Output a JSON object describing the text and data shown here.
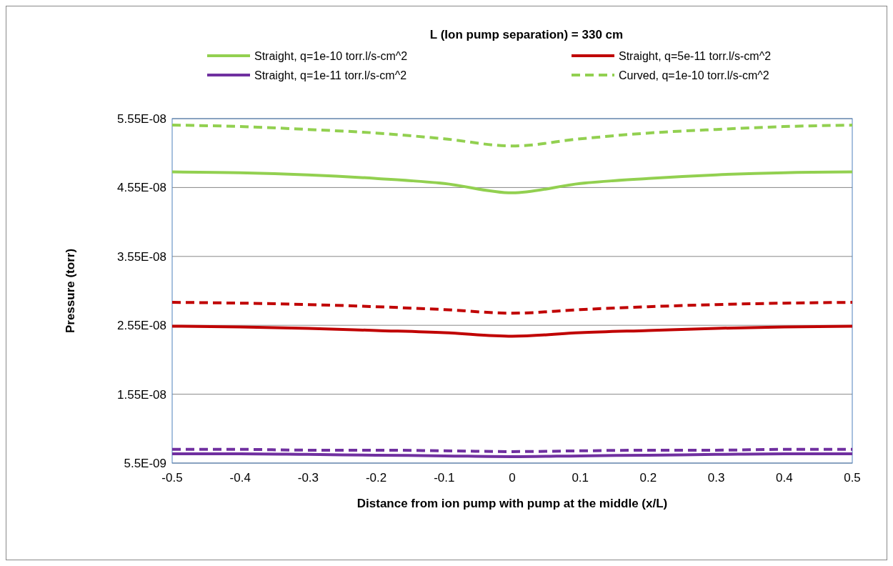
{
  "chart_data": {
    "type": "line",
    "title": "L (Ion pump separation) = 330 cm",
    "xlabel": "Distance from ion pump with pump at the middle (x/L)",
    "ylabel": "Pressure (torr)",
    "x": [
      -0.5,
      -0.4,
      -0.3,
      -0.2,
      -0.1,
      0,
      0.1,
      0.2,
      0.3,
      0.4,
      0.5
    ],
    "series": [
      {
        "name": "Straight, q=1e-10 torr.l/s-cm^2",
        "color": "#92d050",
        "line_style": "solid",
        "values": [
          4.776e-08,
          4.765e-08,
          4.734e-08,
          4.682e-08,
          4.609e-08,
          4.473e-08,
          4.609e-08,
          4.682e-08,
          4.734e-08,
          4.765e-08,
          4.776e-08
        ]
      },
      {
        "name": "Straight, q=5e-11 torr.l/s-cm^2",
        "color": "#c00000",
        "line_style": "solid",
        "values": [
          2.537e-08,
          2.527e-08,
          2.506e-08,
          2.475e-08,
          2.443e-08,
          2.391e-08,
          2.443e-08,
          2.475e-08,
          2.506e-08,
          2.527e-08,
          2.537e-08
        ]
      },
      {
        "name": "Straight, q=1e-11 torr.l/s-cm^2",
        "color": "#7030a0",
        "line_style": "solid",
        "values": [
          6.86e-09,
          6.86e-09,
          6.76e-09,
          6.65e-09,
          6.55e-09,
          6.44e-09,
          6.55e-09,
          6.65e-09,
          6.76e-09,
          6.86e-09,
          6.86e-09
        ]
      },
      {
        "name": "Curved, q=1e-10  torr.l/s-cm^2",
        "color": "#92d050",
        "line_style": "dashed",
        "values": [
          5.456e-08,
          5.435e-08,
          5.393e-08,
          5.341e-08,
          5.257e-08,
          5.153e-08,
          5.257e-08,
          5.341e-08,
          5.393e-08,
          5.435e-08,
          5.456e-08
        ]
      },
      {
        "color": "#c00000",
        "line_style": "dashed",
        "values": [
          2.883e-08,
          2.872e-08,
          2.851e-08,
          2.82e-08,
          2.778e-08,
          2.726e-08,
          2.778e-08,
          2.82e-08,
          2.851e-08,
          2.872e-08,
          2.883e-08
        ]
      },
      {
        "color": "#7030a0",
        "line_style": "dashed",
        "values": [
          7.49e-09,
          7.49e-09,
          7.38e-09,
          7.38e-09,
          7.28e-09,
          7.17e-09,
          7.28e-09,
          7.38e-09,
          7.38e-09,
          7.49e-09,
          7.49e-09
        ]
      }
    ],
    "xlim": [
      -0.5,
      0.5
    ],
    "xticks": [
      -0.5,
      -0.4,
      -0.3,
      -0.2,
      -0.1,
      0,
      0.1,
      0.2,
      0.3,
      0.4,
      0.5
    ],
    "ylim": [
      5.5e-09,
      5.55e-08
    ],
    "yticks": [
      {
        "value": 5.5e-09,
        "label": "5.5E-09"
      },
      {
        "value": 1.55e-08,
        "label": "1.55E-08"
      },
      {
        "value": 2.55e-08,
        "label": "2.55E-08"
      },
      {
        "value": 3.55e-08,
        "label": "3.55E-08"
      },
      {
        "value": 4.55e-08,
        "label": "4.55E-08"
      },
      {
        "value": 5.55e-08,
        "label": "5.55E-08"
      }
    ],
    "grid": "y",
    "legend": "top",
    "marker": "none"
  }
}
